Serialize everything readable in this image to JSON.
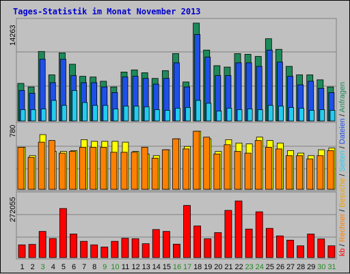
{
  "title": "Tages-Statistik im Monat November 2013",
  "panels": {
    "top_max_label": "14263",
    "mid_max_label": "780",
    "bottom_max_label": "272055"
  },
  "right_labels": {
    "kb": "kb",
    "sep1": " / ",
    "rechner": "Rechner",
    "sep2": " / ",
    "besuche": "Besuche",
    "sep3": " / ",
    "seiten": "Seiten",
    "sep4": " / ",
    "dateien": "Dateien",
    "sep5": " / ",
    "anfragen": "Anfragen"
  },
  "colors": {
    "background": "#c0c0c0",
    "anfragen": "#1e8a5a",
    "dateien": "#1e50e8",
    "seiten": "#22ccee",
    "besuche": "#f0a000",
    "rechner": "#ff8000",
    "besuche_bar": "#ffff00",
    "kb": "#ff0000",
    "title": "#0000cc",
    "weekend_label": "#228822",
    "weekday_label": "#000000"
  },
  "chart_data": {
    "type": "bar",
    "title": "Tages-Statistik im Monat November 2013",
    "categories": [
      "1",
      "2",
      "3",
      "4",
      "5",
      "6",
      "7",
      "8",
      "9",
      "10",
      "11",
      "12",
      "13",
      "14",
      "15",
      "16",
      "17",
      "18",
      "19",
      "20",
      "21",
      "22",
      "23",
      "24",
      "25",
      "26",
      "27",
      "28",
      "29",
      "30",
      "31"
    ],
    "weekend_days": [
      "3",
      "9",
      "10",
      "16",
      "17",
      "23",
      "24",
      "30",
      "31"
    ],
    "panels": [
      {
        "name": "top",
        "max_label": "14263",
        "ylim": [
          0,
          14263
        ],
        "series": [
          {
            "name": "Anfragen",
            "values": [
              5300,
              4800,
              9800,
              6500,
              9600,
              8000,
              6300,
              6200,
              5600,
              4800,
              6900,
              7200,
              6800,
              6000,
              7100,
              9500,
              5500,
              13800,
              10000,
              7800,
              7600,
              9500,
              9400,
              9100,
              11600,
              10100,
              7700,
              6500,
              6500,
              5800,
              4800
            ]
          },
          {
            "name": "Dateien",
            "values": [
              4300,
              3900,
              8700,
              5400,
              8700,
              6400,
              5400,
              5400,
              4800,
              4000,
              6200,
              6300,
              6000,
              5200,
              6000,
              8200,
              4800,
              12200,
              9000,
              6400,
              6400,
              8200,
              8200,
              7700,
              10000,
              8300,
              6300,
              5100,
              5600,
              4600,
              4000
            ]
          },
          {
            "name": "Seiten",
            "values": [
              1600,
              1600,
              1700,
              2900,
              2200,
              4300,
              2600,
              2200,
              2200,
              1700,
              2100,
              2100,
              2000,
              1600,
              1500,
              1800,
              1900,
              2900,
              2500,
              1400,
              1800,
              1600,
              1700,
              1600,
              2200,
              2100,
              1900,
              1800,
              1500,
              1600,
              1500
            ]
          }
        ]
      },
      {
        "name": "middle",
        "max_label": "780",
        "ylim": [
          0,
          780
        ],
        "series": [
          {
            "name": "Besuche",
            "values": [
              500,
              400,
              650,
              450,
              450,
              460,
              590,
              570,
              570,
              570,
              560,
              450,
              420,
              400,
              470,
              600,
              510,
              690,
              600,
              450,
              590,
              550,
              540,
              620,
              580,
              550,
              460,
              430,
              400,
              470,
              490
            ]
          },
          {
            "name": "Rechner",
            "values": [
              500,
              380,
              560,
              580,
              430,
              450,
              500,
              500,
              500,
              440,
              440,
              440,
              500,
              370,
              470,
              600,
              480,
              690,
              620,
              420,
              530,
              450,
              430,
              580,
              500,
              480,
              400,
              400,
              360,
              400,
              460
            ]
          }
        ]
      },
      {
        "name": "bottom",
        "max_label": "272055",
        "ylim": [
          0,
          272055
        ],
        "series": [
          {
            "name": "kb",
            "values": [
              54000,
              56000,
              111000,
              81000,
              208000,
              100000,
              69000,
              54000,
              45000,
              69000,
              82000,
              80000,
              59000,
              119000,
              111000,
              57000,
              221000,
              134000,
              80000,
              106000,
              200000,
              240000,
              121000,
              194000,
              124000,
              92000,
              74000,
              50000,
              100000,
              79000,
              50000
            ]
          }
        ]
      }
    ]
  }
}
